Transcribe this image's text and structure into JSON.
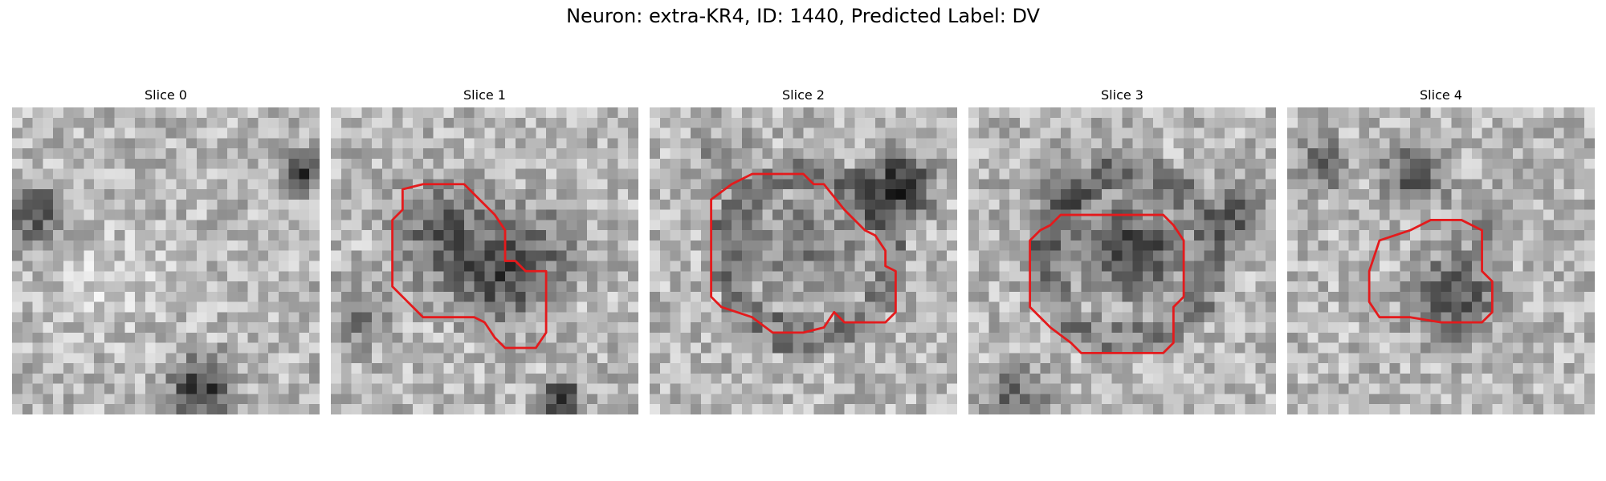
{
  "figure": {
    "title": "Neuron: extra-KR4, ID: 1440, Predicted Label: DV"
  },
  "panels": [
    {
      "title": "Slice 0"
    },
    {
      "title": "Slice 1"
    },
    {
      "title": "Slice 2"
    },
    {
      "title": "Slice 3"
    },
    {
      "title": "Slice 4"
    }
  ],
  "colors": {
    "contour": "#e41a1c",
    "background": "#ffffff"
  }
}
